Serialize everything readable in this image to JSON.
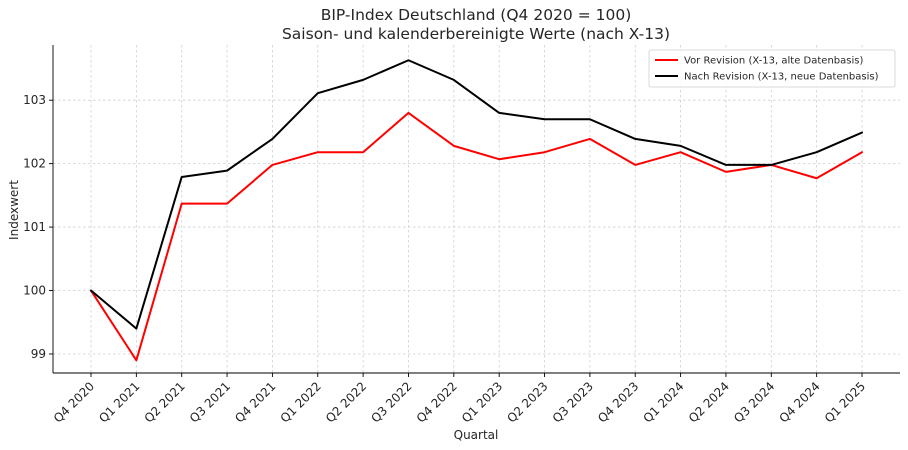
{
  "chart_data": {
    "type": "line",
    "title": "BIP-Index Deutschland (Q4 2020 = 100)",
    "subtitle": "Saison- und kalenderbereinigte Werte (nach X-13)",
    "xlabel": "Quartal",
    "ylabel": "Indexwert",
    "categories": [
      "Q4 2020",
      "Q1 2021",
      "Q2 2021",
      "Q3 2021",
      "Q4 2021",
      "Q1 2022",
      "Q2 2022",
      "Q3 2022",
      "Q4 2022",
      "Q1 2023",
      "Q2 2023",
      "Q3 2023",
      "Q4 2023",
      "Q1 2024",
      "Q2 2024",
      "Q3 2024",
      "Q4 2024",
      "Q1 2025"
    ],
    "series": [
      {
        "name": "Vor Revision (X-13, alte Datenbasis)",
        "color": "#ff0000",
        "values": [
          100.0,
          98.9,
          101.37,
          101.37,
          101.98,
          102.18,
          102.18,
          102.8,
          102.28,
          102.07,
          102.18,
          102.39,
          101.98,
          102.18,
          101.87,
          101.98,
          101.77,
          102.18
        ]
      },
      {
        "name": "Nach Revision (X-13, neue Datenbasis)",
        "color": "#000000",
        "values": [
          100.0,
          99.4,
          101.79,
          101.89,
          102.39,
          103.11,
          103.32,
          103.63,
          103.32,
          102.8,
          102.7,
          102.7,
          102.39,
          102.28,
          101.98,
          101.98,
          102.18,
          102.49
        ]
      }
    ],
    "yticks": [
      99,
      100,
      101,
      102,
      103
    ],
    "ylim": [
      98.7,
      103.87
    ],
    "grid": true,
    "legend_position": "top-right"
  }
}
